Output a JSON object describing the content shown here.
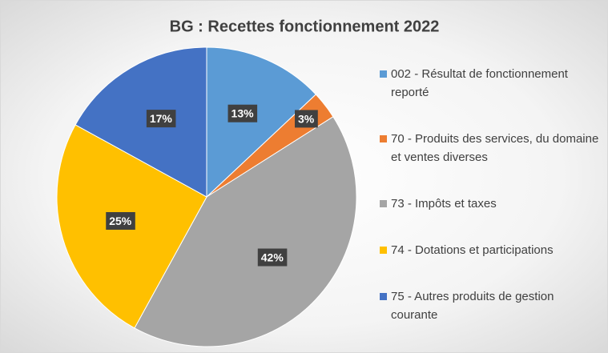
{
  "chart_data": {
    "type": "pie",
    "title": "BG : Recettes fonctionnement 2022",
    "categories": [
      "002 - Résultat de fonctionnement reporté",
      "70 - Produits des services, du domaine et ventes diverses",
      "73 - Impôts et taxes",
      "74 - Dotations et participations",
      "75 - Autres produits de gestion courante"
    ],
    "values": [
      13,
      3,
      42,
      25,
      17
    ],
    "value_labels": [
      "13%",
      "3%",
      "42%",
      "25%",
      "17%"
    ],
    "colors": [
      "#5b9bd5",
      "#ed7d31",
      "#a5a5a5",
      "#ffc000",
      "#4472c4"
    ],
    "legend": "right"
  }
}
